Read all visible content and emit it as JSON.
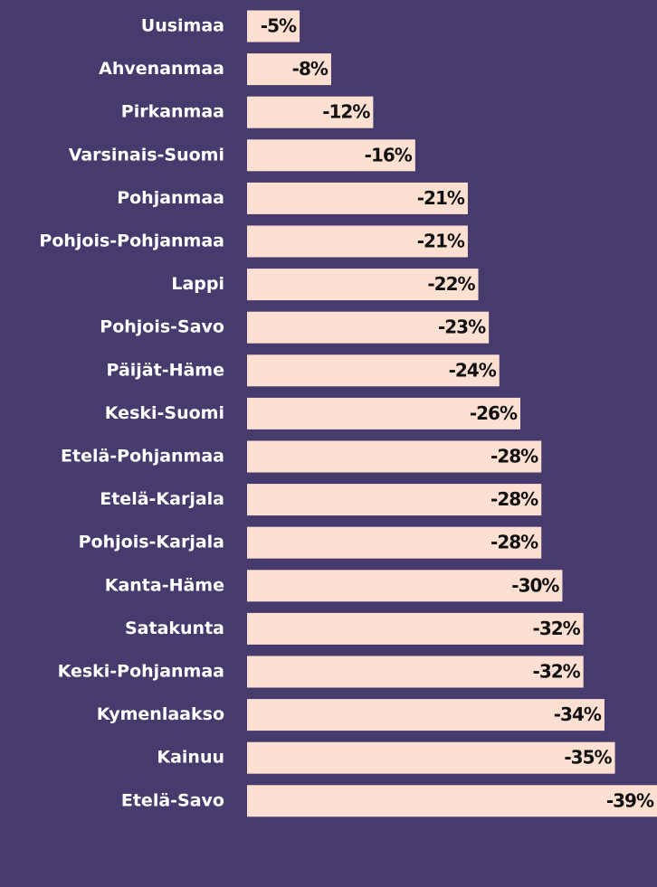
{
  "chart_data": {
    "type": "bar",
    "orientation": "horizontal",
    "categories": [
      "Uusimaa",
      "Ahvenanmaa",
      "Pirkanmaa",
      "Varsinais-Suomi",
      "Pohjanmaa",
      "Pohjois-Pohjanmaa",
      "Lappi",
      "Pohjois-Savo",
      "Päijät-Häme",
      "Keski-Suomi",
      "Etelä-Pohjanmaa",
      "Etelä-Karjala",
      "Pohjois-Karjala",
      "Kanta-Häme",
      "Satakunta",
      "Keski-Pohjanmaa",
      "Kymenlaakso",
      "Kainuu",
      "Etelä-Savo"
    ],
    "values": [
      -5,
      -8,
      -12,
      -16,
      -21,
      -21,
      -22,
      -23,
      -24,
      -26,
      -28,
      -28,
      -28,
      -30,
      -32,
      -32,
      -34,
      -35,
      -39
    ],
    "value_labels": [
      "-5%",
      "-8%",
      "-12%",
      "-16%",
      "-21%",
      "-21%",
      "-22%",
      "-23%",
      "-24%",
      "-26%",
      "-28%",
      "-28%",
      "-28%",
      "-30%",
      "-32%",
      "-32%",
      "-34%",
      "-35%",
      "-39%"
    ],
    "color": "#fde0d2",
    "xlim": [
      0,
      -39
    ]
  }
}
